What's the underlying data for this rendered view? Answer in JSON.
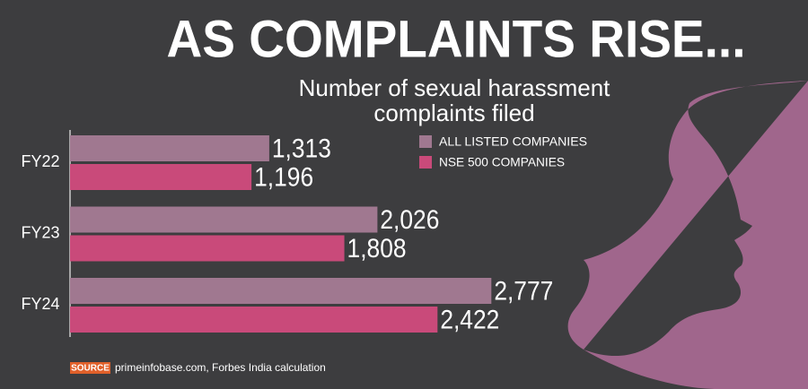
{
  "chart_data": {
    "type": "bar",
    "orientation": "horizontal",
    "title": "AS COMPLAINTS RISE...",
    "subtitle": [
      "Number of sexual harassment",
      "complaints filed"
    ],
    "categories": [
      "FY22",
      "FY23",
      "FY24"
    ],
    "series": [
      {
        "name": "ALL LISTED COMPANIES",
        "color": "#a07890",
        "values": [
          1313,
          2026,
          2777
        ],
        "value_labels": [
          "1,313",
          "2,026",
          "2,777"
        ]
      },
      {
        "name": "NSE 500 COMPANIES",
        "color": "#c94a7a",
        "values": [
          1196,
          1808,
          2422
        ],
        "value_labels": [
          "1,196",
          "1,808",
          "2,422"
        ]
      }
    ],
    "source_label": "SOURCE",
    "source": "primeinfobase.com, Forbes India calculation"
  }
}
